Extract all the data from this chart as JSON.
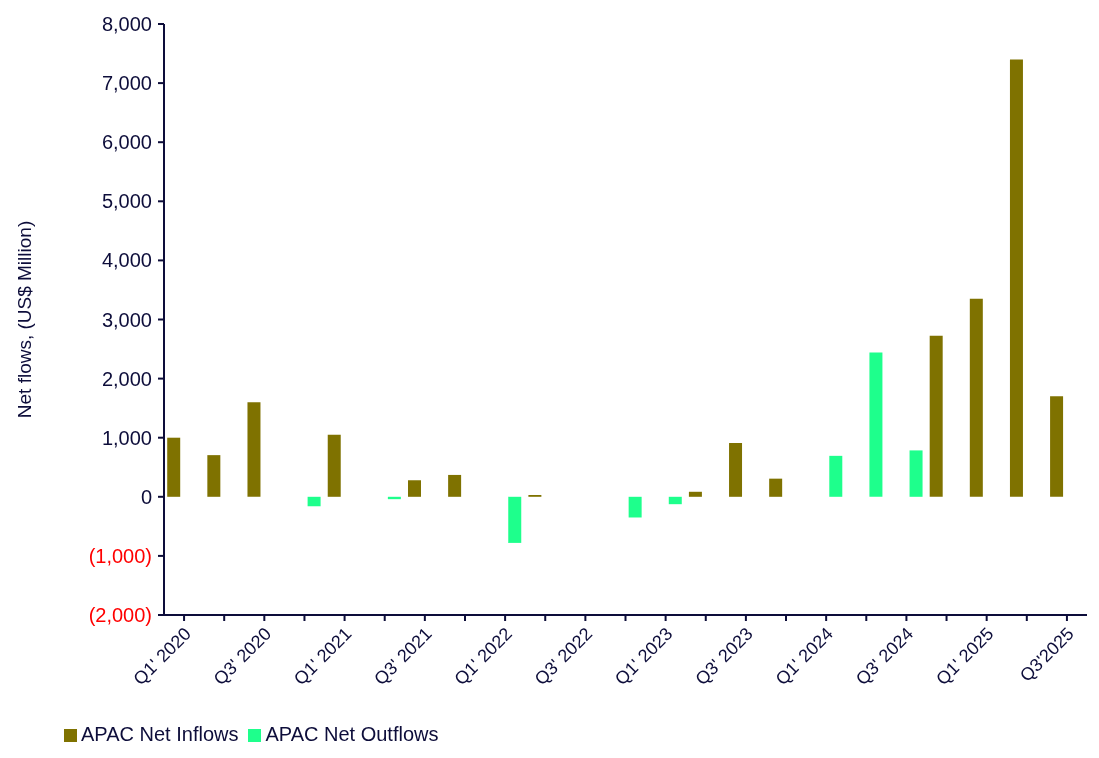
{
  "chart_data": {
    "type": "bar",
    "ylabel": "Net flows, (US$  Million)",
    "categories": [
      "Q1' 2020",
      null,
      "Q3' 2020",
      null,
      "Q1' 2021",
      null,
      "Q3' 2021",
      null,
      "Q1' 2022",
      null,
      "Q3' 2022",
      null,
      "Q1' 2023",
      null,
      "Q3' 2023",
      null,
      "Q1' 2024",
      null,
      "Q3' 2024",
      null,
      "Q1' 2025",
      null,
      "Q3'2025"
    ],
    "series": [
      {
        "name": "APAC Net Inflows",
        "color": "#7f7200",
        "values": [
          1000,
          705,
          1600,
          null,
          1050,
          null,
          280,
          370,
          null,
          30,
          null,
          null,
          null,
          85,
          910,
          307,
          null,
          null,
          null,
          2725,
          3350,
          7400,
          1700
        ]
      },
      {
        "name": "APAC Net Outflows",
        "color": "#1eff8c",
        "values": [
          null,
          null,
          null,
          -160,
          null,
          -40,
          null,
          null,
          -780,
          null,
          null,
          -350,
          -125,
          null,
          null,
          null,
          693,
          2440,
          785,
          null,
          null,
          null,
          null
        ]
      }
    ],
    "ylim": [
      -2000,
      8000
    ],
    "yticks": [
      {
        "value": -2000,
        "label": "(2,000)"
      },
      {
        "value": -1000,
        "label": "(1,000)"
      },
      0,
      {
        "value": 1000,
        "label": "1,000"
      },
      {
        "value": 2000,
        "label": "2,000"
      },
      {
        "value": 3000,
        "label": "3,000"
      },
      {
        "value": 4000,
        "label": "4,000"
      },
      {
        "value": 5000,
        "label": "5,000"
      },
      {
        "value": 6000,
        "label": "6,000"
      },
      {
        "value": 7000,
        "label": "7,000"
      },
      {
        "value": 8000,
        "label": "8,000"
      }
    ],
    "grid": false,
    "legend": "bottom left"
  }
}
